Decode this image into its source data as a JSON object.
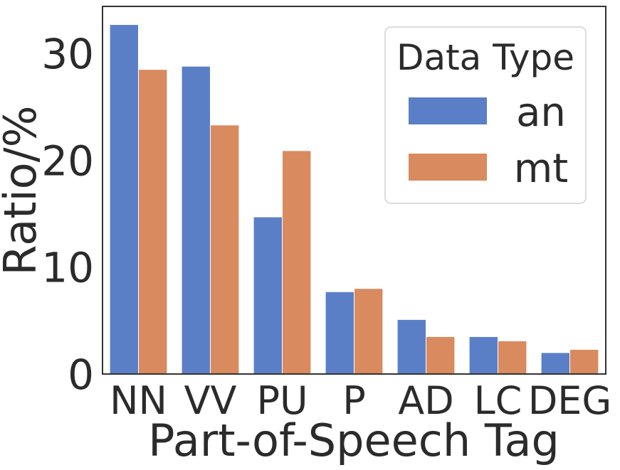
{
  "chart_data": {
    "type": "bar",
    "title": "",
    "xlabel": "Part-of-Speech Tag",
    "ylabel": "Ratio/%",
    "categories": [
      "NN",
      "VV",
      "PU",
      "P",
      "AD",
      "LC",
      "DEG"
    ],
    "series": [
      {
        "name": "an",
        "color": "#5b7fc7",
        "values": [
          32.7,
          28.8,
          14.7,
          7.7,
          5.1,
          3.5,
          2.0
        ]
      },
      {
        "name": "mt",
        "color": "#d98a5e",
        "values": [
          28.5,
          23.3,
          20.9,
          8.0,
          3.5,
          3.1,
          2.3
        ]
      }
    ],
    "ylim": [
      0,
      34.4
    ],
    "yticks": [
      0,
      10,
      20,
      30
    ],
    "grid": false,
    "legend": {
      "title": "Data Type",
      "placement": "top-right"
    }
  }
}
